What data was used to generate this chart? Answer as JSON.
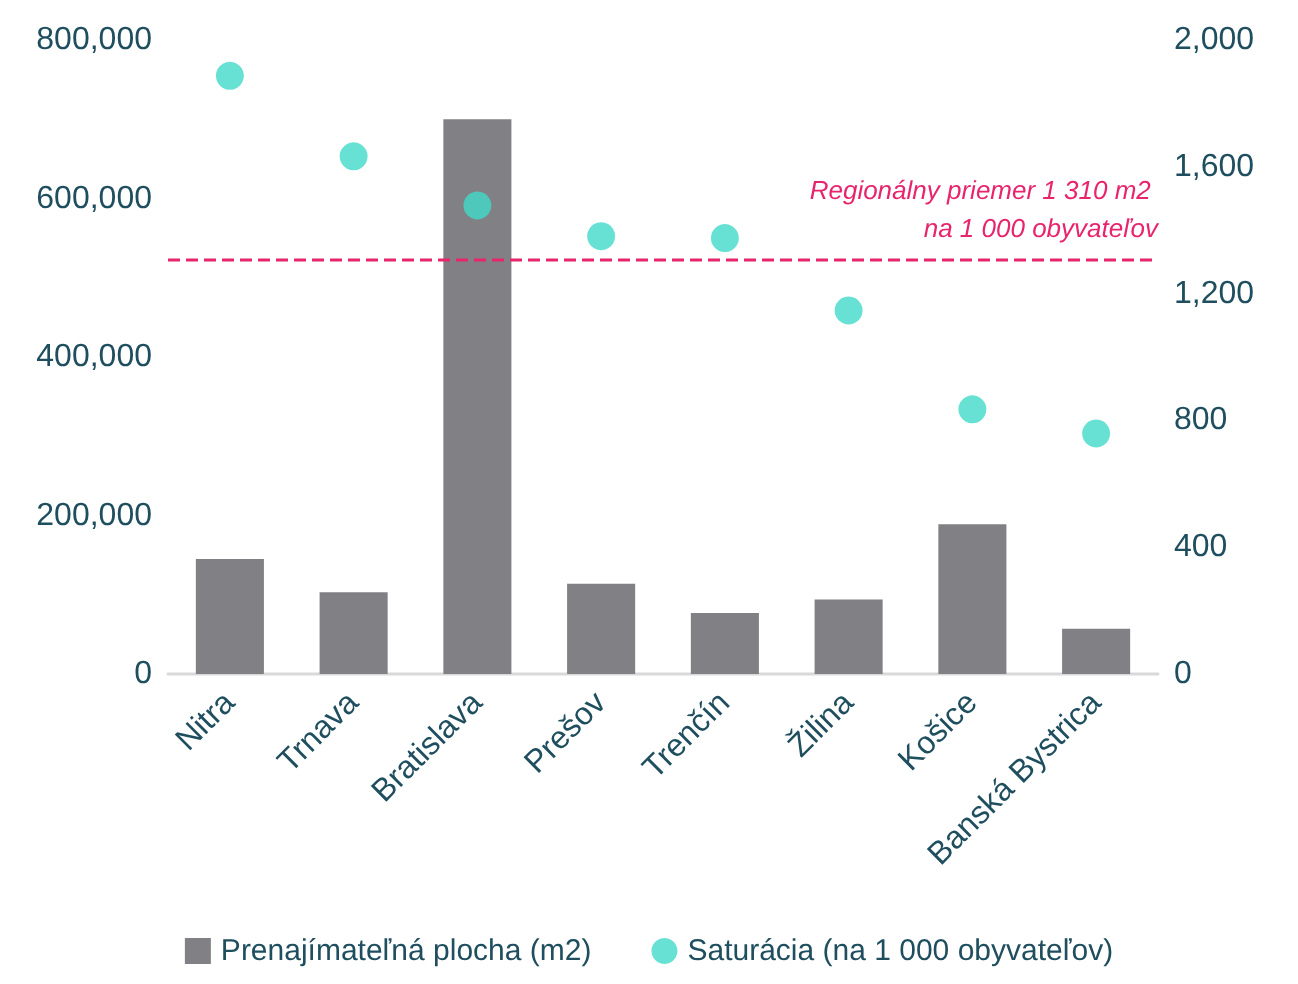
{
  "chart_data": {
    "type": "bar",
    "categories": [
      "Nitra",
      "Trnava",
      "Bratislava",
      "Prešov",
      "Trenčín",
      "Žilina",
      "Košice",
      "Banská Bystrica"
    ],
    "series": [
      {
        "name": "Prenajímateľná plocha (m2)",
        "color": "#808085",
        "values": [
          145000,
          103000,
          700000,
          114000,
          77000,
          94000,
          189000,
          57000
        ]
      },
      {
        "name": "Saturácia (na 1 000 obyvateľov)",
        "type": "scatter",
        "axis": "y2",
        "color": "#40d9c8",
        "values": [
          1887,
          1633,
          1478,
          1381,
          1375,
          1147,
          835,
          759
        ]
      }
    ],
    "ylim": [
      0,
      800000
    ],
    "yticks": [
      {
        "value": 0,
        "label": "0"
      },
      {
        "value": 200000,
        "label": "200,000"
      },
      {
        "value": 400000,
        "label": "400,000"
      },
      {
        "value": 600000,
        "label": "600,000"
      },
      {
        "value": 800000,
        "label": "800,000"
      }
    ],
    "y2lim": [
      0,
      2000
    ],
    "y2ticks": [
      {
        "value": 0,
        "label": "0"
      },
      {
        "value": 400,
        "label": "400"
      },
      {
        "value": 800,
        "label": "800"
      },
      {
        "value": 1200,
        "label": "1,200"
      },
      {
        "value": 1600,
        "label": "1,600"
      },
      {
        "value": 2000,
        "label": "2,000"
      }
    ],
    "ref_lines": [
      {
        "axis": "y2",
        "value": 1310,
        "label": "Regionálny priemer 1 310 m2 na 1 000 obyvateľov",
        "color": "#e8246c",
        "line_style": "dashed"
      }
    ],
    "grid": false,
    "legend": "bottom",
    "marker": "circle"
  }
}
